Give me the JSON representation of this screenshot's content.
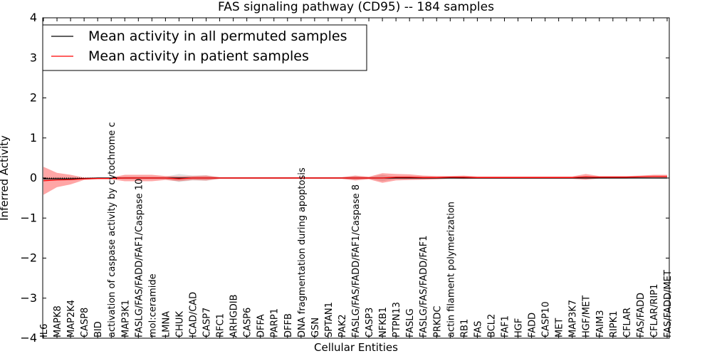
{
  "chart_data": {
    "type": "line",
    "title": "FAS signaling pathway (CD95) -- 184 samples",
    "xlabel": "Cellular Entities",
    "ylabel": "Inferred Activity",
    "ylim": [
      -4,
      4
    ],
    "yticks": [
      -4,
      -3,
      -2,
      -1,
      0,
      1,
      2,
      3,
      4
    ],
    "ytick_labels": [
      "−4",
      "−3",
      "−2",
      "−1",
      "0",
      "1",
      "2",
      "3",
      "4"
    ],
    "legend_position": "top-left",
    "categories": [
      "IL6",
      "MAPK8",
      "MAP2K4",
      "CASP8",
      "BID",
      "activation of caspase activity by cytochrome c",
      "MAP3K1",
      "FASLG/FAS/FADD/FAF1/Caspase 10",
      "mol:ceramide",
      "LMNA",
      "CHUK",
      "ICAD/CAD",
      "CASP7",
      "RFC1",
      "ARHGDIB",
      "CASP6",
      "DFFA",
      "PARP1",
      "DFFB",
      "DNA fragmentation during apoptosis",
      "GSN",
      "SPTAN1",
      "PAK2",
      "FASLG/FAS/FADD/FAF1/Caspase 8",
      "CASP3",
      "NFKB1",
      "PTPN13",
      "FASLG",
      "FASLG/FAS/FADD/FAF1",
      "PRKDC",
      "actin filament polymerization",
      "RB1",
      "FAS",
      "BCL2",
      "FAF1",
      "HGF",
      "FADD",
      "CASP10",
      "MET",
      "MAP3K7",
      "HGF/MET",
      "FAIM3",
      "RIPK1",
      "CFLAR",
      "FAS/FADD",
      "CFLAR/RIP1",
      "FAS/FADD/MET"
    ],
    "series": [
      {
        "name": "Mean activity in all permuted samples",
        "color": "#000000",
        "values": [
          -0.02,
          -0.02,
          -0.02,
          -0.01,
          0.0,
          0.0,
          0.0,
          0.0,
          0.0,
          0.0,
          0.0,
          0.0,
          0.0,
          0.0,
          0.0,
          0.0,
          0.0,
          0.0,
          0.0,
          0.0,
          0.0,
          0.0,
          0.0,
          0.0,
          0.0,
          0.0,
          0.0,
          0.0,
          0.0,
          0.0,
          0.0,
          0.0,
          0.0,
          0.0,
          0.0,
          0.0,
          0.0,
          0.0,
          0.0,
          0.0,
          0.0,
          0.0,
          0.0,
          0.0,
          0.0,
          0.0,
          0.0
        ],
        "band": [
          0.04,
          0.04,
          0.04,
          0.02,
          0.01,
          0.01,
          0.03,
          0.03,
          0.03,
          0.03,
          0.1,
          0.06,
          0.07,
          0.02,
          0.02,
          0.02,
          0.02,
          0.02,
          0.02,
          0.02,
          0.02,
          0.02,
          0.02,
          0.05,
          0.02,
          0.08,
          0.02,
          0.03,
          0.04,
          0.03,
          0.03,
          0.03,
          0.02,
          0.02,
          0.02,
          0.02,
          0.02,
          0.02,
          0.02,
          0.02,
          0.03,
          0.02,
          0.02,
          0.02,
          0.02,
          0.02,
          0.03
        ]
      },
      {
        "name": "Mean activity in patient samples",
        "color": "#ff0000",
        "values": [
          -0.07,
          -0.05,
          -0.04,
          -0.02,
          -0.01,
          -0.01,
          0.0,
          0.0,
          0.0,
          0.0,
          -0.02,
          0.0,
          0.0,
          0.0,
          0.0,
          0.0,
          0.0,
          0.0,
          0.0,
          0.0,
          0.0,
          0.0,
          0.0,
          0.0,
          0.0,
          0.0,
          0.02,
          0.02,
          0.01,
          0.01,
          0.02,
          0.02,
          0.01,
          0.01,
          0.01,
          0.01,
          0.01,
          0.01,
          0.01,
          0.01,
          0.03,
          0.02,
          0.02,
          0.02,
          0.03,
          0.04,
          0.04
        ],
        "band": [
          0.35,
          0.18,
          0.12,
          0.03,
          0.02,
          0.02,
          0.08,
          0.08,
          0.08,
          0.05,
          0.06,
          0.05,
          0.06,
          0.02,
          0.02,
          0.02,
          0.02,
          0.02,
          0.02,
          0.02,
          0.02,
          0.02,
          0.02,
          0.06,
          0.03,
          0.12,
          0.08,
          0.07,
          0.05,
          0.04,
          0.03,
          0.04,
          0.03,
          0.03,
          0.03,
          0.03,
          0.03,
          0.03,
          0.03,
          0.03,
          0.07,
          0.03,
          0.03,
          0.03,
          0.03,
          0.04,
          0.04
        ]
      }
    ]
  }
}
